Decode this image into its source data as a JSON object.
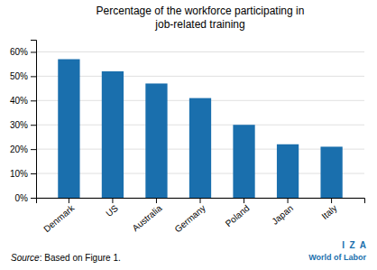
{
  "chart_data": {
    "type": "bar",
    "title": "Percentage of the workforce participating in\njob-related training",
    "categories": [
      "Denmark",
      "US",
      "Australia",
      "Germany",
      "Poland",
      "Japan",
      "Italy"
    ],
    "values": [
      57,
      52,
      47,
      41,
      30,
      22,
      21
    ],
    "color": "#1A6FAD",
    "ylim": [
      0,
      65
    ],
    "yticks": [
      {
        "value": 0,
        "label": "0%"
      },
      {
        "value": 10,
        "label": "10%"
      },
      {
        "value": 20,
        "label": "20%"
      },
      {
        "value": 30,
        "label": "30%"
      },
      {
        "value": 40,
        "label": "40%"
      },
      {
        "value": 50,
        "label": "50%"
      },
      {
        "value": 60,
        "label": "60%"
      }
    ],
    "grid": true,
    "source_label": "Source",
    "source_text": ": Based on Figure 1.",
    "logo": [
      "I  Z  A",
      "World of Labor"
    ]
  }
}
